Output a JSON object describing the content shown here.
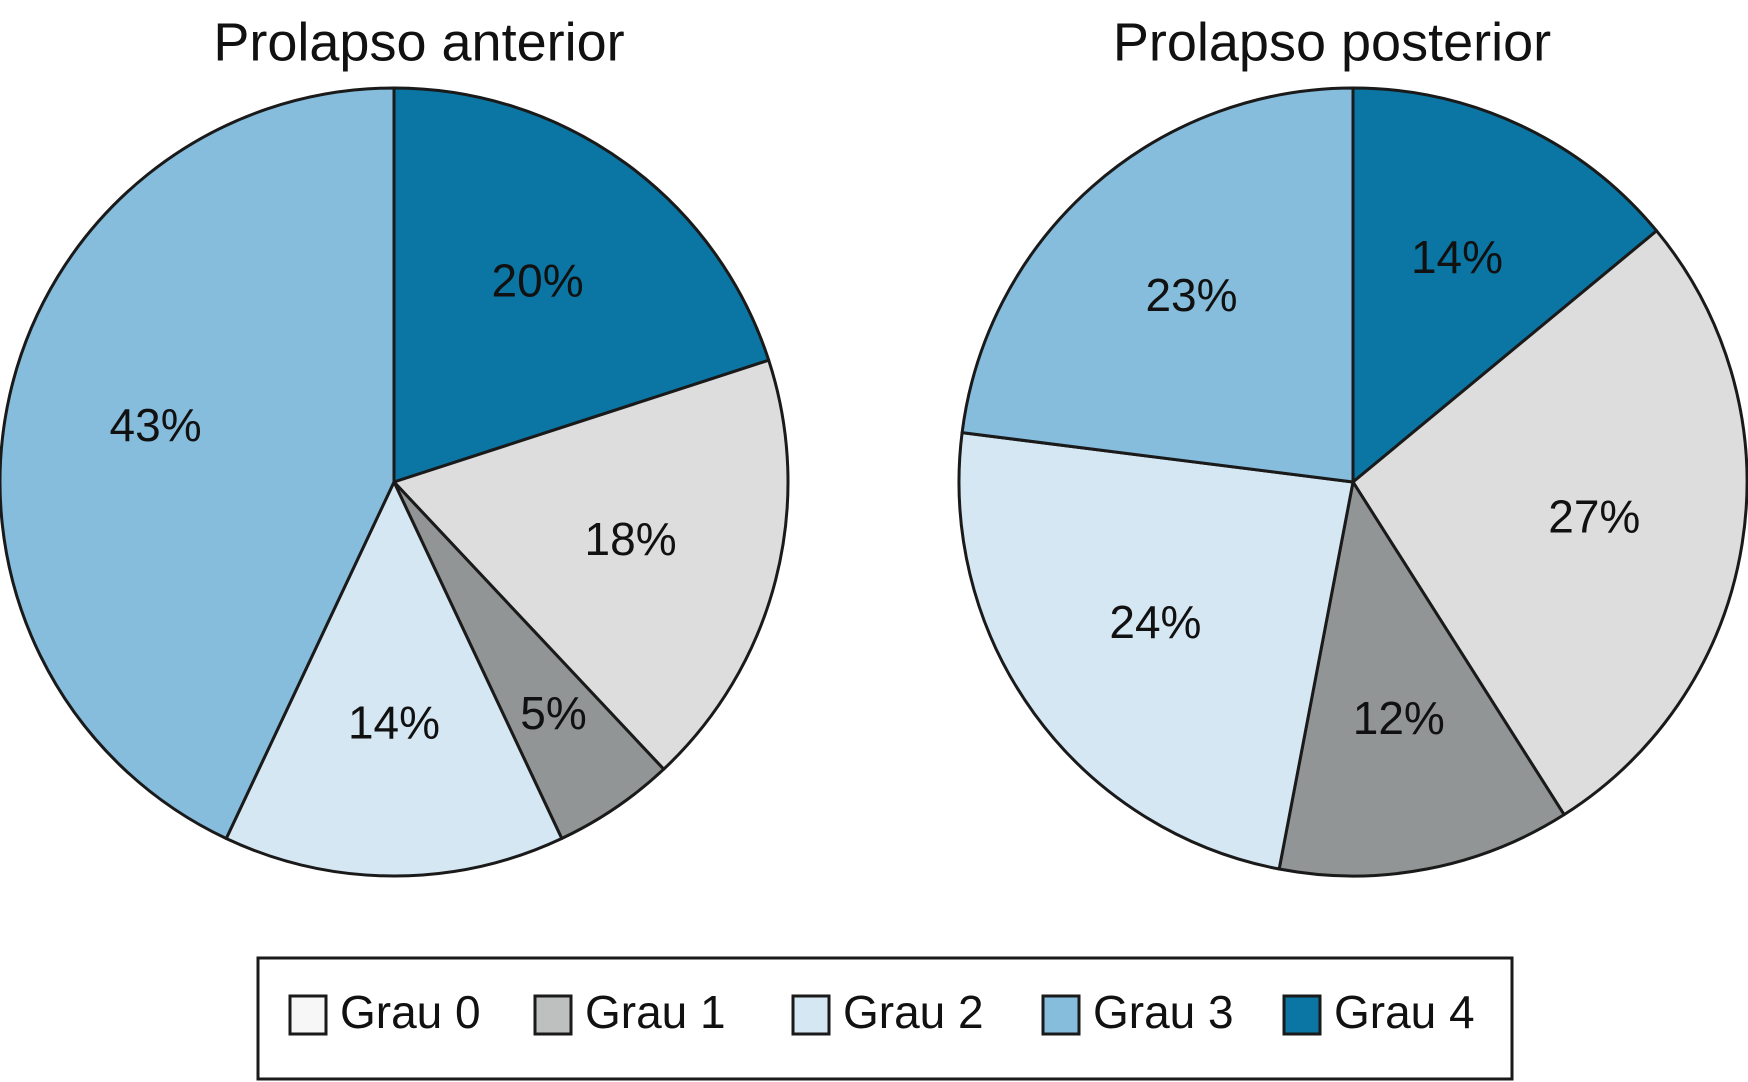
{
  "chart_data": [
    {
      "type": "pie",
      "title": "Prolapso anterior",
      "slices": [
        {
          "name": "Grau 4",
          "value": 20,
          "label": "20%"
        },
        {
          "name": "Grau 0",
          "value": 18,
          "label": "18%"
        },
        {
          "name": "Grau 1",
          "value": 5,
          "label": "5%"
        },
        {
          "name": "Grau 2",
          "value": 14,
          "label": "14%"
        },
        {
          "name": "Grau 3",
          "value": 43,
          "label": "43%"
        }
      ]
    },
    {
      "type": "pie",
      "title": "Prolapso posterior",
      "slices": [
        {
          "name": "Grau 4",
          "value": 14,
          "label": "14%"
        },
        {
          "name": "Grau 0",
          "value": 27,
          "label": "27%"
        },
        {
          "name": "Grau 1",
          "value": 12,
          "label": "12%"
        },
        {
          "name": "Grau 2",
          "value": 24,
          "label": "24%"
        },
        {
          "name": "Grau 3",
          "value": 23,
          "label": "23%"
        }
      ]
    }
  ],
  "legend": {
    "placement": "bottom",
    "items": [
      {
        "name": "Grau 0",
        "label": "Grau 0"
      },
      {
        "name": "Grau 1",
        "label": "Grau 1"
      },
      {
        "name": "Grau 2",
        "label": "Grau 2"
      },
      {
        "name": "Grau 3",
        "label": "Grau 3"
      },
      {
        "name": "Grau 4",
        "label": "Grau 4"
      }
    ]
  },
  "colors": {
    "Grau 0": "#dcdddc",
    "Grau 1": "#919596",
    "Grau 2": "#d5e7f3",
    "Grau 3": "#86bddd",
    "Grau 4": "#0b76a3",
    "legend_swatch_Grau 0": "#f7f7f7",
    "legend_swatch_Grau 1": "#bec0c0",
    "outline": "#1a1a1a"
  }
}
